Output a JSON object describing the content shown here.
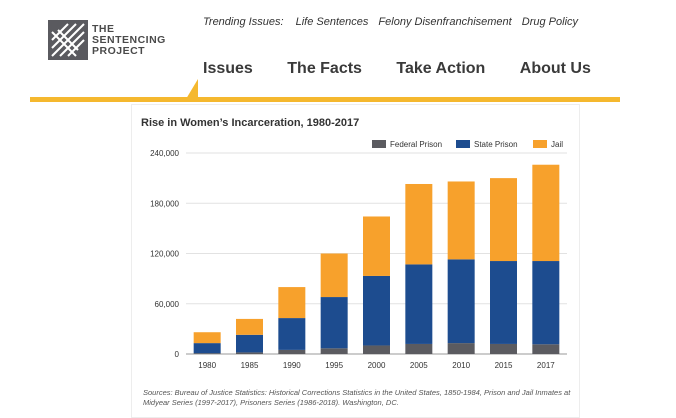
{
  "header": {
    "logo": {
      "line1": "THE",
      "line2": "SENTENCING",
      "line3": "PROJECT"
    },
    "trending": {
      "label": "Trending Issues:",
      "links": [
        "Life Sentences",
        "Felony Disenfranchisement",
        "Drug Policy"
      ]
    },
    "nav": [
      "Issues",
      "The Facts",
      "Take Action",
      "About Us"
    ],
    "accent_color": "#f5b82e"
  },
  "chart_data": {
    "type": "bar",
    "stacked": true,
    "title": "Rise in Women’s Incarceration, 1980-2017",
    "xlabel": "",
    "ylabel": "",
    "categories": [
      "1980",
      "1985",
      "1990",
      "1995",
      "2000",
      "2005",
      "2010",
      "2015",
      "2017"
    ],
    "series": [
      {
        "name": "Federal Prison",
        "color": "#5b5b60",
        "values": [
          1000,
          1900,
          4900,
          6800,
          10200,
          12000,
          13000,
          12000,
          11600
        ]
      },
      {
        "name": "State Prison",
        "color": "#1d4c8f",
        "values": [
          12000,
          21000,
          38000,
          61200,
          83000,
          95000,
          100000,
          99000,
          99400
        ]
      },
      {
        "name": "Jail",
        "color": "#f7a12c",
        "values": [
          13000,
          19000,
          37000,
          52000,
          71000,
          96000,
          93000,
          99000,
          115000
        ]
      }
    ],
    "ylim": [
      0,
      240000
    ],
    "yticks": [
      "0",
      "60,000",
      "120,000",
      "180,000",
      "240,000"
    ],
    "ytick_values": [
      0,
      60000,
      120000,
      180000,
      240000
    ],
    "grid": true,
    "legend": "top-right"
  },
  "source": "Sources: Bureau of Justice Statistics: Historical Corrections Statistics in the United States, 1850-1984, Prison and Jail Inmates at Midyear Series (1997-2017), Prisoners Series (1986-2018). Washington, DC."
}
